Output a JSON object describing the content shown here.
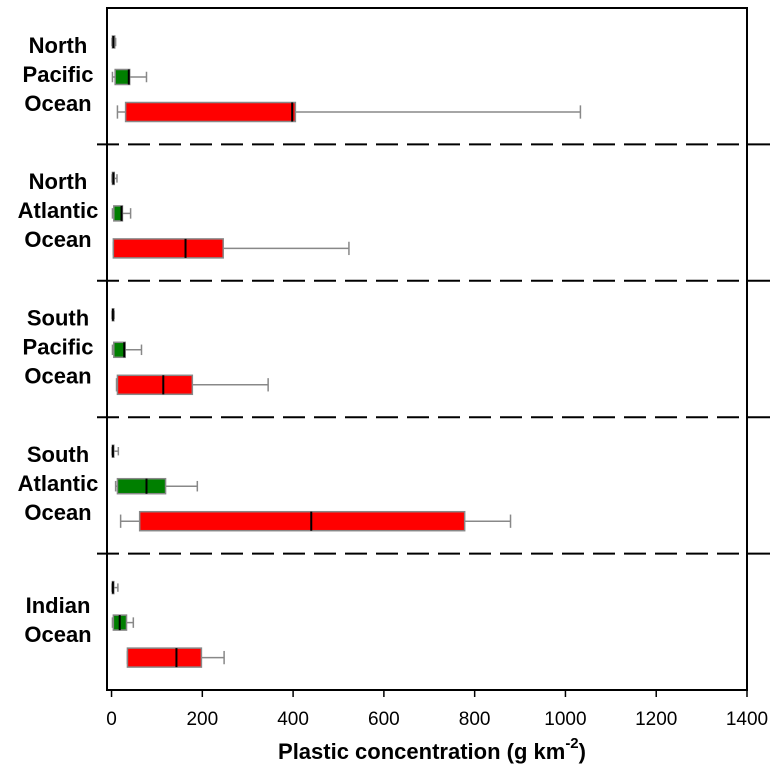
{
  "chart_data": {
    "type": "boxplot",
    "orientation": "horizontal",
    "categories": [
      [
        "North",
        "Pacific",
        "Ocean"
      ],
      [
        "North",
        "Atlantic",
        "Ocean"
      ],
      [
        "South",
        "Pacific",
        "Ocean"
      ],
      [
        "South",
        "Atlantic",
        "Ocean"
      ],
      [
        "Indian",
        "Ocean"
      ]
    ],
    "colors": [
      "#8c8c8c",
      "#007f00",
      "#ff0000"
    ],
    "boxes": [
      [
        {
          "low": 1,
          "q1": 2,
          "median": 4,
          "q3": 7,
          "high": 9
        },
        {
          "low": 2,
          "q1": 8,
          "median": 38,
          "q3": 40,
          "high": 77
        },
        {
          "low": 13,
          "q1": 31,
          "median": 398,
          "q3": 405,
          "high": 1033
        }
      ],
      [
        {
          "low": 1,
          "q1": 2,
          "median": 4,
          "q3": 6,
          "high": 12
        },
        {
          "low": 2,
          "q1": 5,
          "median": 22,
          "q3": 24,
          "high": 42
        },
        {
          "low": 4,
          "q1": 4,
          "median": 163,
          "q3": 246,
          "high": 523
        }
      ],
      [
        {
          "low": 1,
          "q1": 2,
          "median": 3,
          "q3": 5,
          "high": 6
        },
        {
          "low": 2,
          "q1": 5,
          "median": 28,
          "q3": 30,
          "high": 66
        },
        {
          "low": 11,
          "q1": 13,
          "median": 114,
          "q3": 178,
          "high": 345
        }
      ],
      [
        {
          "low": 1,
          "q1": 2,
          "median": 3,
          "q3": 5,
          "high": 15
        },
        {
          "low": 9,
          "q1": 13,
          "median": 77,
          "q3": 119,
          "high": 189
        },
        {
          "low": 20,
          "q1": 62,
          "median": 440,
          "q3": 778,
          "high": 879
        }
      ],
      [
        {
          "low": 1,
          "q1": 2,
          "median": 3,
          "q3": 5,
          "high": 14
        },
        {
          "low": 2,
          "q1": 4,
          "median": 18,
          "q3": 33,
          "high": 48
        },
        {
          "low": 35,
          "q1": 35,
          "median": 143,
          "q3": 198,
          "high": 248
        }
      ]
    ],
    "xlim": [
      -10,
      1400
    ],
    "xticks": [
      0,
      200,
      400,
      600,
      800,
      1000,
      1200,
      1400
    ],
    "xlabel": [
      "Plastic concentration (g km",
      "-2",
      ")"
    ]
  }
}
